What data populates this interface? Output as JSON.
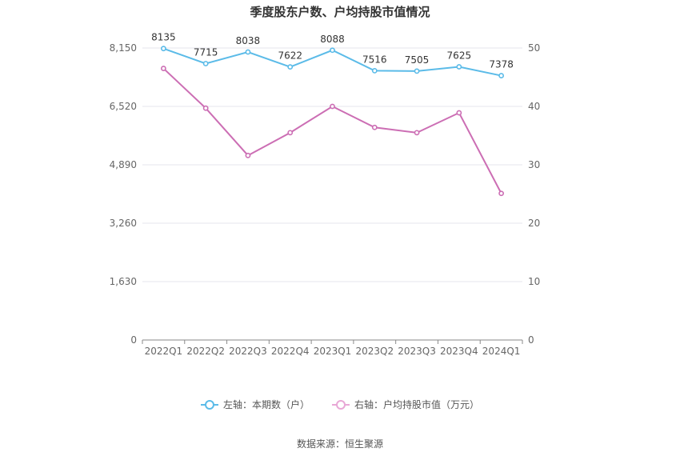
{
  "chart_data": {
    "type": "line",
    "title": "季度股东户数、户均持股市值情况",
    "categories": [
      "2022Q1",
      "2022Q2",
      "2022Q3",
      "2022Q4",
      "2023Q1",
      "2023Q2",
      "2023Q3",
      "2023Q4",
      "2024Q1"
    ],
    "left_axis": {
      "ticks": [
        "0",
        "1,630",
        "3,260",
        "4,890",
        "6,520",
        "8,150"
      ],
      "ylim": [
        0,
        8150
      ]
    },
    "right_axis": {
      "ticks": [
        "0",
        "10",
        "20",
        "30",
        "40",
        "50"
      ],
      "ylim": [
        0,
        50
      ]
    },
    "series": [
      {
        "name": "左轴：本期数（户）",
        "axis": "left",
        "color": "#5bbbe8",
        "values": [
          8135,
          7715,
          8038,
          7622,
          8088,
          7516,
          7505,
          7625,
          7378
        ],
        "labels": [
          "8135",
          "7715",
          "8038",
          "7622",
          "8088",
          "7516",
          "7505",
          "7625",
          "7378"
        ]
      },
      {
        "name": "右轴：户均持股市值（万元）",
        "axis": "right",
        "color": "#cc6eb4",
        "values": [
          46.5,
          39.7,
          31.6,
          35.5,
          40.0,
          36.4,
          35.5,
          38.9,
          25.1
        ]
      }
    ],
    "grid": true,
    "legend_position": "bottom"
  },
  "source": "数据来源：恒生聚源"
}
